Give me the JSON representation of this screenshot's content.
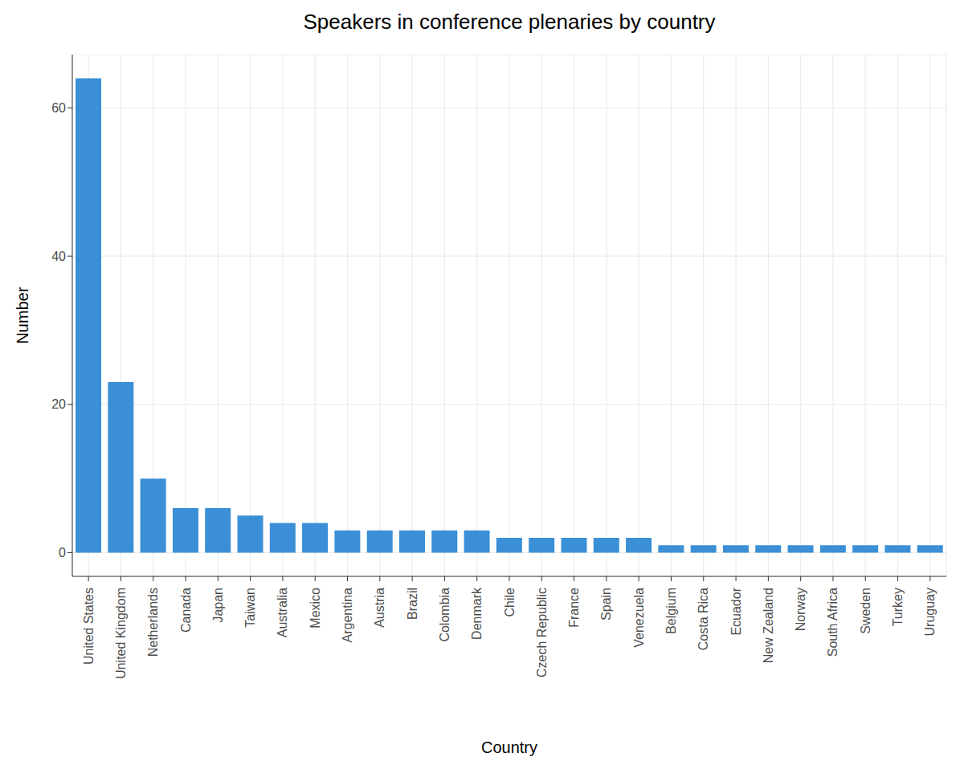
{
  "chart_data": {
    "type": "bar",
    "title": "Speakers in conference plenaries by country",
    "x_label": "Country",
    "y_label": "Number",
    "categories": [
      "United States",
      "United Kingdom",
      "Netherlands",
      "Canada",
      "Japan",
      "Taiwan",
      "Australia",
      "Mexico",
      "Argentina",
      "Austria",
      "Brazil",
      "Colombia",
      "Denmark",
      "Chile",
      "Czech Republic",
      "France",
      "Spain",
      "Venezuela",
      "Belgium",
      "Costa Rica",
      "Ecuador",
      "New Zealand",
      "Norway",
      "South Africa",
      "Sweden",
      "Turkey",
      "Uruguay"
    ],
    "values": [
      64,
      23,
      10,
      6,
      6,
      5,
      4,
      4,
      3,
      3,
      3,
      3,
      3,
      2,
      2,
      2,
      2,
      2,
      1,
      1,
      1,
      1,
      1,
      1,
      1,
      1,
      1
    ],
    "color": "#3a8fd6",
    "ylim": [
      -3.2,
      67.2
    ],
    "yticks": [
      0,
      20,
      40,
      60
    ],
    "grid": true
  }
}
